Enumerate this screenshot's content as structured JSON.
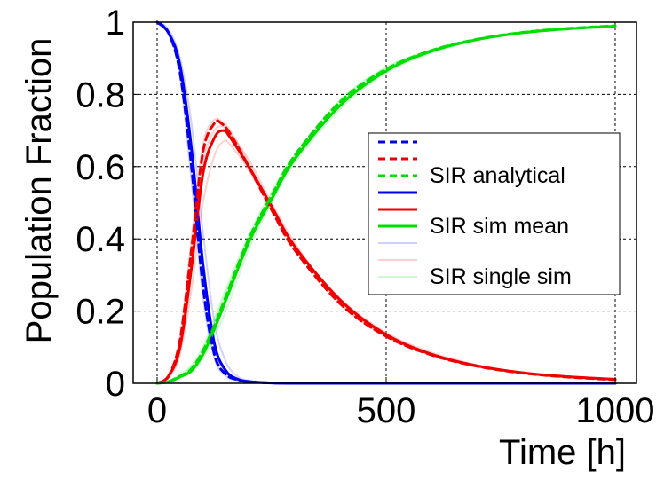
{
  "chart_data": {
    "type": "line",
    "title": "",
    "xlabel": "Time [h]",
    "ylabel": "Population Fraction",
    "xlim": [
      0,
      1000
    ],
    "ylim": [
      0,
      1
    ],
    "x_ticks": [
      0,
      500,
      1000
    ],
    "x_tick_labels": [
      "0",
      "500",
      "1000"
    ],
    "y_ticks": [
      0,
      0.2,
      0.4,
      0.6,
      0.8,
      1
    ],
    "y_tick_labels": [
      "0",
      "0.2",
      "0.4",
      "0.6",
      "0.8",
      "1"
    ],
    "grid": true,
    "legend_position": "right",
    "colors": {
      "S": "#0000ee",
      "I": "#ee0000",
      "R": "#00dd00"
    },
    "legend": [
      {
        "label": "",
        "series": "S",
        "style": "dashed"
      },
      {
        "label": "",
        "series": "I",
        "style": "dashed"
      },
      {
        "label": "SIR analytical",
        "series": "R",
        "style": "dashed"
      },
      {
        "label": "",
        "series": "S",
        "style": "solid"
      },
      {
        "label": "",
        "series": "I",
        "style": "solid"
      },
      {
        "label": "SIR sim mean",
        "series": "R",
        "style": "solid"
      },
      {
        "label": "",
        "series": "S",
        "style": "faint"
      },
      {
        "label": "",
        "series": "I",
        "style": "faint"
      },
      {
        "label": "SIR single sim",
        "series": "R",
        "style": "faint"
      }
    ],
    "series": [
      {
        "name": "S analytical",
        "group": "S",
        "style": "dashed",
        "x": [
          0,
          25,
          50,
          75,
          100,
          125,
          150,
          175,
          200,
          250,
          300,
          400,
          500,
          750,
          1000
        ],
        "y": [
          1.0,
          0.97,
          0.86,
          0.6,
          0.27,
          0.08,
          0.025,
          0.01,
          0.004,
          0.001,
          0,
          0,
          0,
          0,
          0
        ]
      },
      {
        "name": "I analytical",
        "group": "I",
        "style": "dashed",
        "x": [
          0,
          25,
          50,
          75,
          100,
          125,
          140,
          160,
          200,
          250,
          300,
          400,
          500,
          600,
          700,
          800,
          900,
          1000
        ],
        "y": [
          0.0,
          0.02,
          0.12,
          0.37,
          0.64,
          0.72,
          0.72,
          0.69,
          0.6,
          0.48,
          0.37,
          0.22,
          0.13,
          0.078,
          0.047,
          0.028,
          0.017,
          0.01
        ]
      },
      {
        "name": "R analytical",
        "group": "R",
        "style": "dashed",
        "x": [
          0,
          25,
          50,
          75,
          100,
          125,
          150,
          200,
          250,
          300,
          400,
          500,
          600,
          700,
          800,
          900,
          1000
        ],
        "y": [
          0.0,
          0.005,
          0.02,
          0.04,
          0.09,
          0.16,
          0.24,
          0.4,
          0.52,
          0.63,
          0.78,
          0.87,
          0.922,
          0.953,
          0.972,
          0.983,
          0.99
        ]
      },
      {
        "name": "S sim mean",
        "group": "S",
        "style": "solid",
        "x": [
          0,
          25,
          50,
          75,
          100,
          125,
          150,
          175,
          200,
          250,
          300,
          400,
          500,
          750,
          1000
        ],
        "y": [
          1.0,
          0.97,
          0.88,
          0.65,
          0.33,
          0.11,
          0.035,
          0.012,
          0.005,
          0.001,
          0,
          0,
          0,
          0,
          0
        ]
      },
      {
        "name": "I sim mean",
        "group": "I",
        "style": "solid",
        "x": [
          0,
          25,
          50,
          75,
          100,
          125,
          145,
          160,
          200,
          250,
          300,
          400,
          500,
          600,
          700,
          800,
          900,
          1000
        ],
        "y": [
          0.0,
          0.02,
          0.1,
          0.32,
          0.58,
          0.68,
          0.7,
          0.68,
          0.6,
          0.49,
          0.38,
          0.23,
          0.135,
          0.08,
          0.048,
          0.029,
          0.018,
          0.011
        ]
      },
      {
        "name": "R sim mean",
        "group": "R",
        "style": "solid",
        "x": [
          0,
          25,
          50,
          75,
          100,
          125,
          150,
          200,
          250,
          300,
          400,
          500,
          600,
          700,
          800,
          900,
          1000
        ],
        "y": [
          0.0,
          0.004,
          0.018,
          0.035,
          0.08,
          0.15,
          0.23,
          0.39,
          0.51,
          0.62,
          0.77,
          0.865,
          0.92,
          0.952,
          0.971,
          0.982,
          0.989
        ]
      },
      {
        "name": "S single sim 1",
        "group": "S",
        "style": "faint",
        "x": [
          0,
          25,
          50,
          75,
          100,
          125,
          150,
          175,
          200,
          250,
          300,
          1000
        ],
        "y": [
          1.0,
          0.97,
          0.85,
          0.56,
          0.24,
          0.07,
          0.02,
          0.008,
          0.003,
          0.001,
          0,
          0
        ]
      },
      {
        "name": "S single sim 2",
        "group": "S",
        "style": "faint",
        "x": [
          0,
          25,
          50,
          75,
          100,
          125,
          150,
          175,
          200,
          250,
          300,
          1000
        ],
        "y": [
          1.0,
          0.98,
          0.9,
          0.72,
          0.42,
          0.17,
          0.06,
          0.02,
          0.008,
          0.002,
          0,
          0
        ]
      },
      {
        "name": "S single sim 3",
        "group": "S",
        "style": "faint",
        "x": [
          0,
          25,
          50,
          75,
          100,
          125,
          150,
          175,
          200,
          250,
          300,
          1000
        ],
        "y": [
          1.0,
          0.97,
          0.87,
          0.62,
          0.3,
          0.1,
          0.03,
          0.011,
          0.004,
          0.001,
          0,
          0
        ]
      },
      {
        "name": "I single sim 1",
        "group": "I",
        "style": "faint",
        "x": [
          0,
          25,
          50,
          75,
          100,
          125,
          145,
          160,
          200,
          250,
          300,
          400,
          500,
          600,
          700,
          800,
          900,
          1000
        ],
        "y": [
          0.0,
          0.02,
          0.13,
          0.4,
          0.66,
          0.73,
          0.72,
          0.7,
          0.61,
          0.49,
          0.38,
          0.225,
          0.13,
          0.08,
          0.047,
          0.028,
          0.017,
          0.01
        ]
      },
      {
        "name": "I single sim 2",
        "group": "I",
        "style": "faint",
        "x": [
          0,
          25,
          50,
          75,
          100,
          125,
          145,
          160,
          200,
          250,
          300,
          400,
          500,
          600,
          700,
          800,
          900,
          1000
        ],
        "y": [
          0.0,
          0.015,
          0.08,
          0.26,
          0.5,
          0.63,
          0.67,
          0.66,
          0.59,
          0.48,
          0.38,
          0.235,
          0.14,
          0.085,
          0.05,
          0.03,
          0.019,
          0.012
        ]
      },
      {
        "name": "I single sim 3",
        "group": "I",
        "style": "faint",
        "x": [
          0,
          25,
          50,
          75,
          100,
          125,
          145,
          160,
          200,
          250,
          300,
          400,
          500,
          600,
          700,
          800,
          900,
          1000
        ],
        "y": [
          0.0,
          0.02,
          0.11,
          0.35,
          0.61,
          0.7,
          0.71,
          0.69,
          0.62,
          0.5,
          0.39,
          0.22,
          0.13,
          0.077,
          0.046,
          0.028,
          0.017,
          0.011
        ]
      },
      {
        "name": "R single sim 1",
        "group": "R",
        "style": "faint",
        "x": [
          0,
          25,
          50,
          75,
          100,
          125,
          150,
          200,
          250,
          300,
          400,
          500,
          600,
          700,
          800,
          900,
          1000
        ],
        "y": [
          0.0,
          0.006,
          0.025,
          0.05,
          0.1,
          0.18,
          0.26,
          0.41,
          0.53,
          0.63,
          0.775,
          0.87,
          0.921,
          0.953,
          0.972,
          0.983,
          0.99
        ]
      },
      {
        "name": "R single sim 2",
        "group": "R",
        "style": "faint",
        "x": [
          0,
          25,
          50,
          75,
          100,
          125,
          150,
          200,
          250,
          300,
          400,
          500,
          600,
          700,
          800,
          900,
          1000
        ],
        "y": [
          0.0,
          0.003,
          0.015,
          0.03,
          0.07,
          0.13,
          0.2,
          0.37,
          0.5,
          0.61,
          0.76,
          0.86,
          0.915,
          0.95,
          0.97,
          0.981,
          0.988
        ]
      },
      {
        "name": "R single sim 3",
        "group": "R",
        "style": "faint",
        "x": [
          0,
          25,
          50,
          75,
          100,
          125,
          150,
          200,
          250,
          300,
          400,
          500,
          600,
          700,
          800,
          900,
          1000
        ],
        "y": [
          0.0,
          0.005,
          0.02,
          0.045,
          0.09,
          0.17,
          0.25,
          0.4,
          0.52,
          0.63,
          0.785,
          0.875,
          0.924,
          0.954,
          0.973,
          0.984,
          0.99
        ]
      }
    ]
  }
}
